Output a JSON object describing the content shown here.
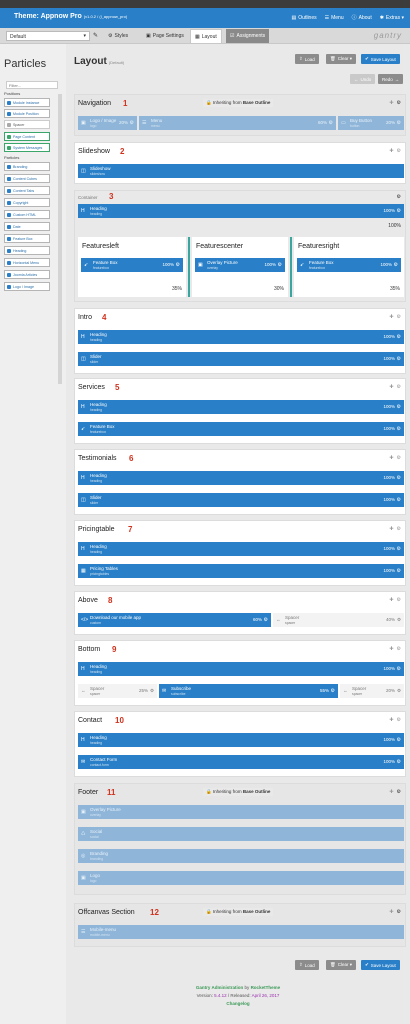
{
  "header": {
    "title": "Theme: Appnow Pro",
    "version": "(v1.0.2 / (l_appnow_pro)",
    "nav": [
      {
        "icon": "outlines-icon",
        "label": "Outlines"
      },
      {
        "icon": "menu-icon",
        "label": "Menu"
      },
      {
        "icon": "about-icon",
        "label": "About"
      },
      {
        "icon": "extras-icon",
        "label": "Extras ▾"
      }
    ]
  },
  "toolbar": {
    "outline_select": "Default",
    "tabs": [
      "Styles",
      "Page Settings",
      "Layout",
      "Assignments"
    ],
    "brand": "gantry"
  },
  "sidebar": {
    "title": "Particles",
    "filter_placeholder": "Filter...",
    "positions_label": "Positions",
    "particles_label": "Particles",
    "positions": [
      "Module Instance",
      "Module Position",
      "Spacer",
      "Page Content",
      "System Messages"
    ],
    "particles": [
      "Branding",
      "Content Cubes",
      "Content Tabs",
      "Copyright",
      "Custom HTML",
      "Date",
      "Feature Box",
      "Heading",
      "Horizontal Menu",
      "Joomla Articles",
      "Logo / Image"
    ]
  },
  "layout": {
    "title": "Layout",
    "subtitle": "(Default)",
    "load": "Load",
    "clear": "Clear ▾",
    "save": "Save Layout",
    "undo": "Undo",
    "redo": "Redo"
  },
  "inherit": {
    "prefix": "Inheriting from",
    "outline": "Base Outline"
  },
  "sections": [
    {
      "name": "Navigation",
      "num": "1"
    },
    {
      "name": "Slideshow",
      "num": "2"
    },
    {
      "name": "Container",
      "num": "3"
    },
    {
      "name": "Intro",
      "num": "4"
    },
    {
      "name": "Services",
      "num": "5"
    },
    {
      "name": "Testimonials",
      "num": "6"
    },
    {
      "name": "Pricingtable",
      "num": "7"
    },
    {
      "name": "Above",
      "num": "8"
    },
    {
      "name": "Bottom",
      "num": "9"
    },
    {
      "name": "Contact",
      "num": "10"
    },
    {
      "name": "Footer",
      "num": "11"
    },
    {
      "name": "Offcanvas Section",
      "num": "12"
    }
  ],
  "nav_blocks": [
    {
      "name": "Logo / Image",
      "sub": "logo",
      "pct": "20%"
    },
    {
      "name": "Menu",
      "sub": "menu",
      "pct": "60%"
    },
    {
      "name": "Buy Button",
      "sub": "button",
      "pct": "20%"
    }
  ],
  "slideshow_block": {
    "name": "Slideshow",
    "sub": "slideshow",
    "pct": "100%"
  },
  "container": {
    "heading": {
      "name": "Heading",
      "sub": "heading",
      "pct": "100%"
    },
    "total": "100%",
    "cols": [
      {
        "title": "Featuresleft",
        "block": "Feature Box",
        "sub": "featurebox",
        "pct": "100%",
        "width": "35%"
      },
      {
        "title": "Featurescenter",
        "block": "Overlay Picture",
        "sub": "overlay",
        "pct": "100%",
        "width": "30%"
      },
      {
        "title": "Featuresright",
        "block": "Feature Box",
        "sub": "featurebox",
        "pct": "100%",
        "width": "35%"
      }
    ]
  },
  "intro_blocks": [
    {
      "name": "Heading",
      "sub": "heading",
      "pct": "100%"
    },
    {
      "name": "Slider",
      "sub": "slider",
      "pct": "100%"
    }
  ],
  "services_blocks": [
    {
      "name": "Heading",
      "sub": "heading",
      "pct": "100%"
    },
    {
      "name": "Feature Box",
      "sub": "featurebox",
      "pct": "100%"
    }
  ],
  "testimonials_blocks": [
    {
      "name": "Heading",
      "sub": "heading",
      "pct": "100%"
    },
    {
      "name": "Slider",
      "sub": "slider",
      "pct": "100%"
    }
  ],
  "pricing_blocks": [
    {
      "name": "Heading",
      "sub": "heading",
      "pct": "100%"
    },
    {
      "name": "Pricing Tables",
      "sub": "pricingtables",
      "pct": "100%"
    }
  ],
  "above_blocks": [
    {
      "name": "Download our  mobile app",
      "sub": "custom",
      "pct": "60%"
    },
    {
      "name": "Spacer",
      "sub": "spacer",
      "pct": "40%"
    }
  ],
  "bottom_blocks": {
    "heading": {
      "name": "Heading",
      "sub": "heading",
      "pct": "100%"
    },
    "row": [
      {
        "name": "Spacer",
        "sub": "spacer",
        "pct": "25%"
      },
      {
        "name": "Subscribe",
        "sub": "subscribe",
        "pct": "55%"
      },
      {
        "name": "Spacer",
        "sub": "spacer",
        "pct": "20%"
      }
    ]
  },
  "contact_blocks": [
    {
      "name": "Heading",
      "sub": "heading",
      "pct": "100%"
    },
    {
      "name": "Contact Form",
      "sub": "contact-form",
      "pct": "100%"
    }
  ],
  "footer_blocks": [
    {
      "name": "Overlay Picture",
      "sub": "overlay"
    },
    {
      "name": "Social",
      "sub": "social"
    },
    {
      "name": "Branding",
      "sub": "branding"
    },
    {
      "name": "Logo",
      "sub": "logo"
    }
  ],
  "offcanvas_blocks": [
    {
      "name": "Mobile-menu",
      "sub": "mobile-menu"
    }
  ],
  "footer": {
    "line1a": "Gantry Administration",
    "line1b": "by",
    "line1c": "RocketTheme",
    "line2a": "Version:",
    "version": "5.4.12",
    "line2b": "/ Released:",
    "released": "April 26, 2017",
    "changelog": "Changelog"
  }
}
